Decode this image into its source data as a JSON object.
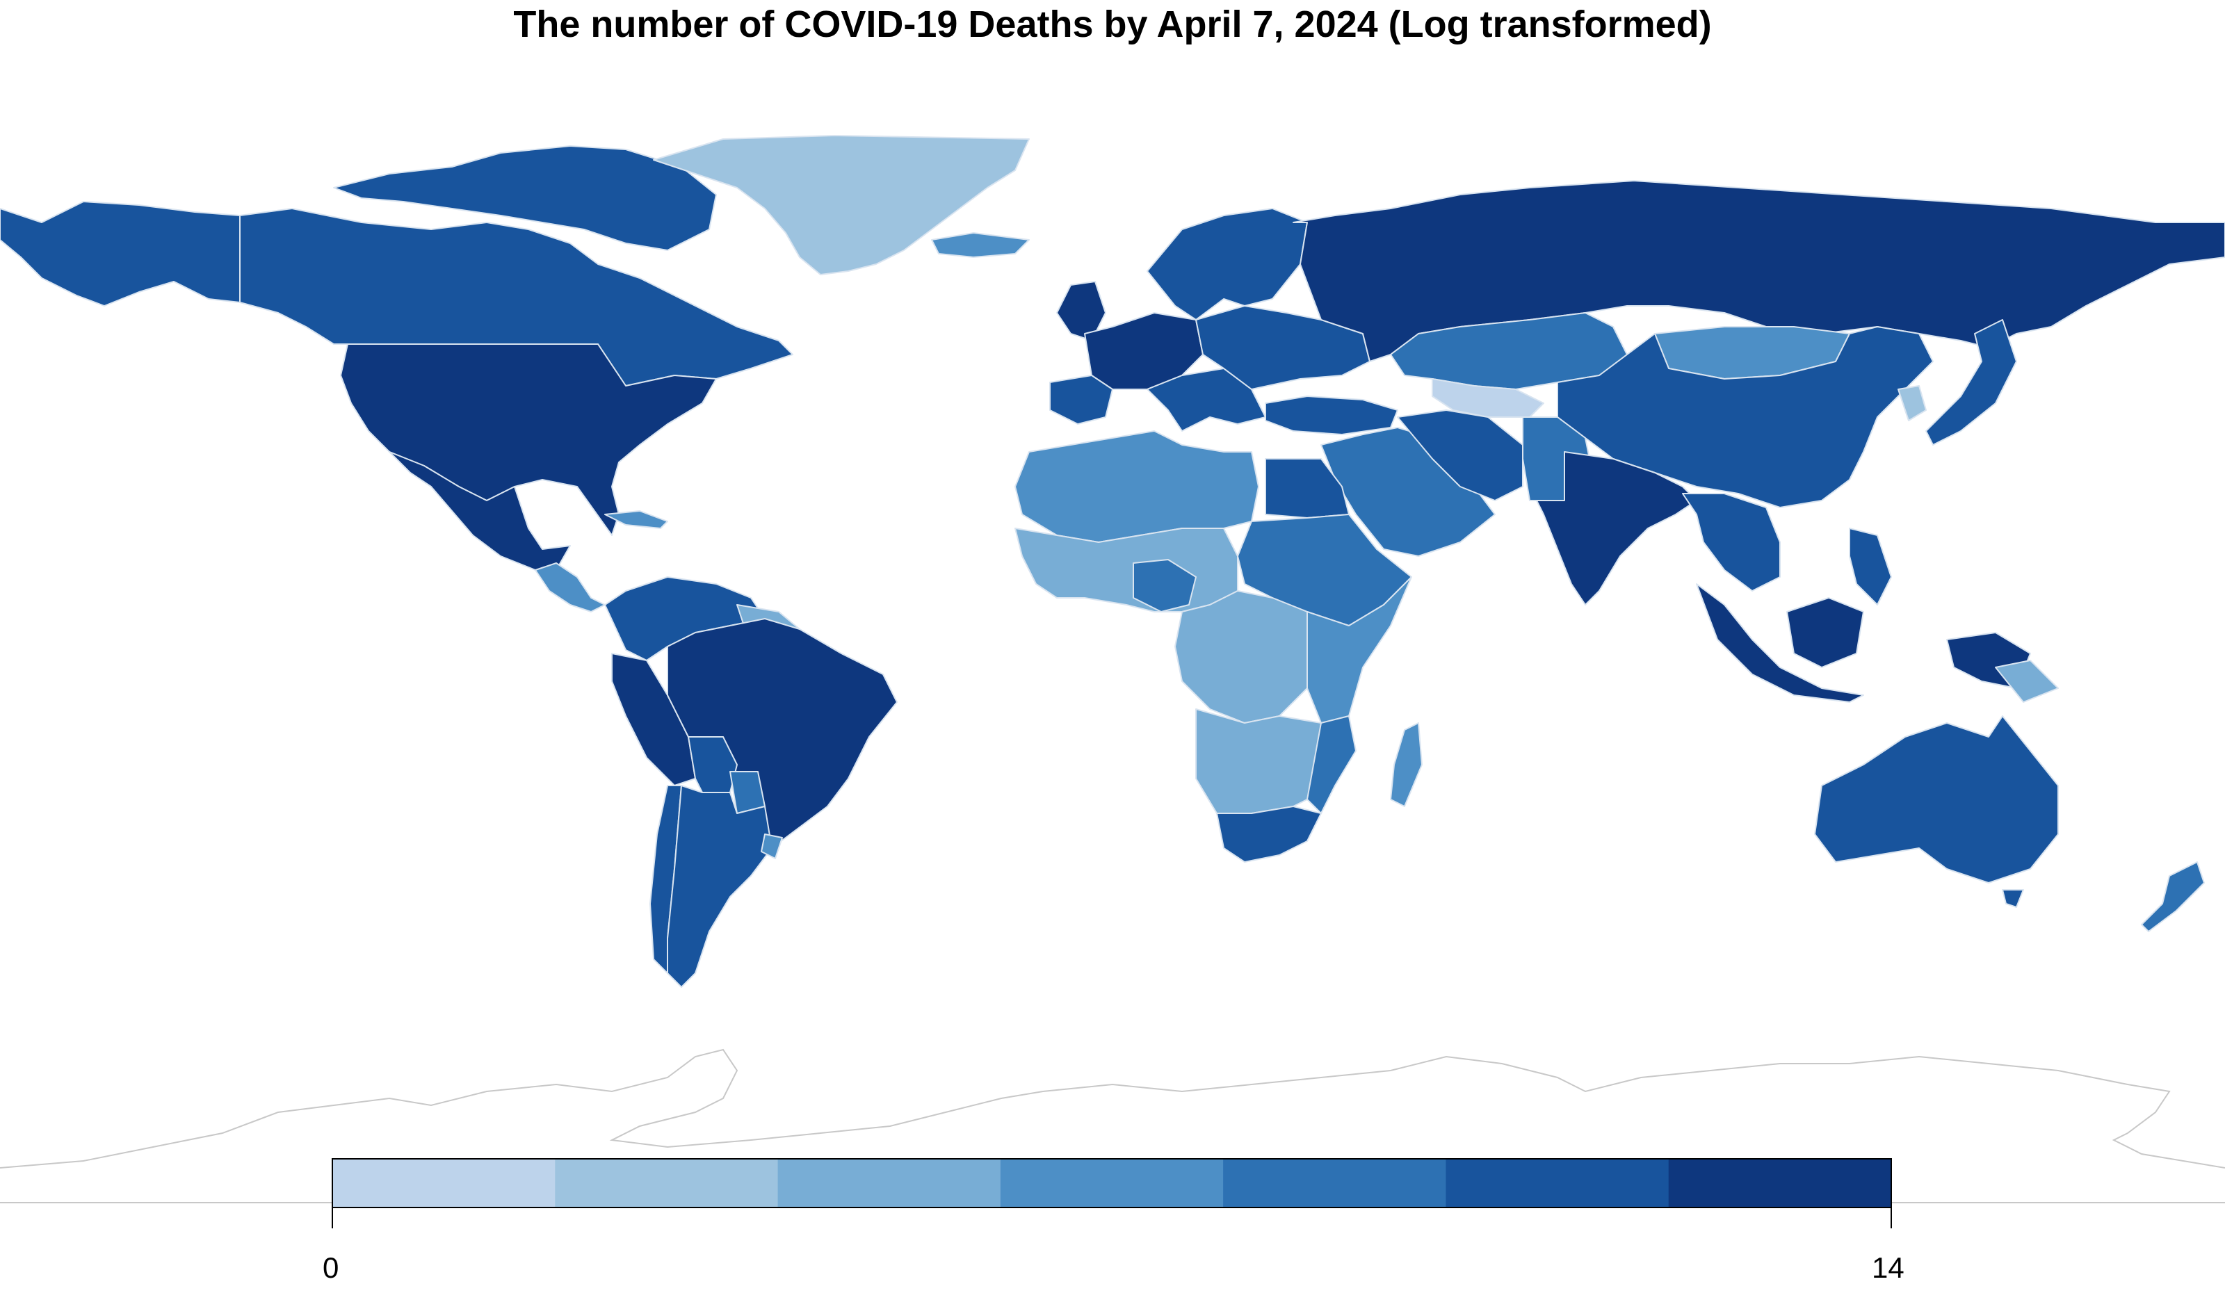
{
  "title": "The number of COVID-19 Deaths by April 7, 2024 (Log transformed)",
  "map": {
    "type": "choropleth",
    "projection": "equirectangular world map",
    "outline_color": "#d9e4f0",
    "land_missing_color": "#ffffff",
    "antarctica": "outline only (no data)"
  },
  "legend": {
    "min_label": "0",
    "max_label": "14",
    "range": [
      0,
      14
    ],
    "bins": 7,
    "colors": [
      "#bdd3eb",
      "#9dc3df",
      "#78add5",
      "#4d8fc6",
      "#2d71b3",
      "#18549d",
      "#0e377e"
    ]
  },
  "colors": {
    "c1": "#bdd3eb",
    "c2": "#9dc3df",
    "c3": "#78add5",
    "c4": "#4d8fc6",
    "c5": "#2d71b3",
    "c6": "#18549d",
    "c7": "#0e377e"
  }
}
